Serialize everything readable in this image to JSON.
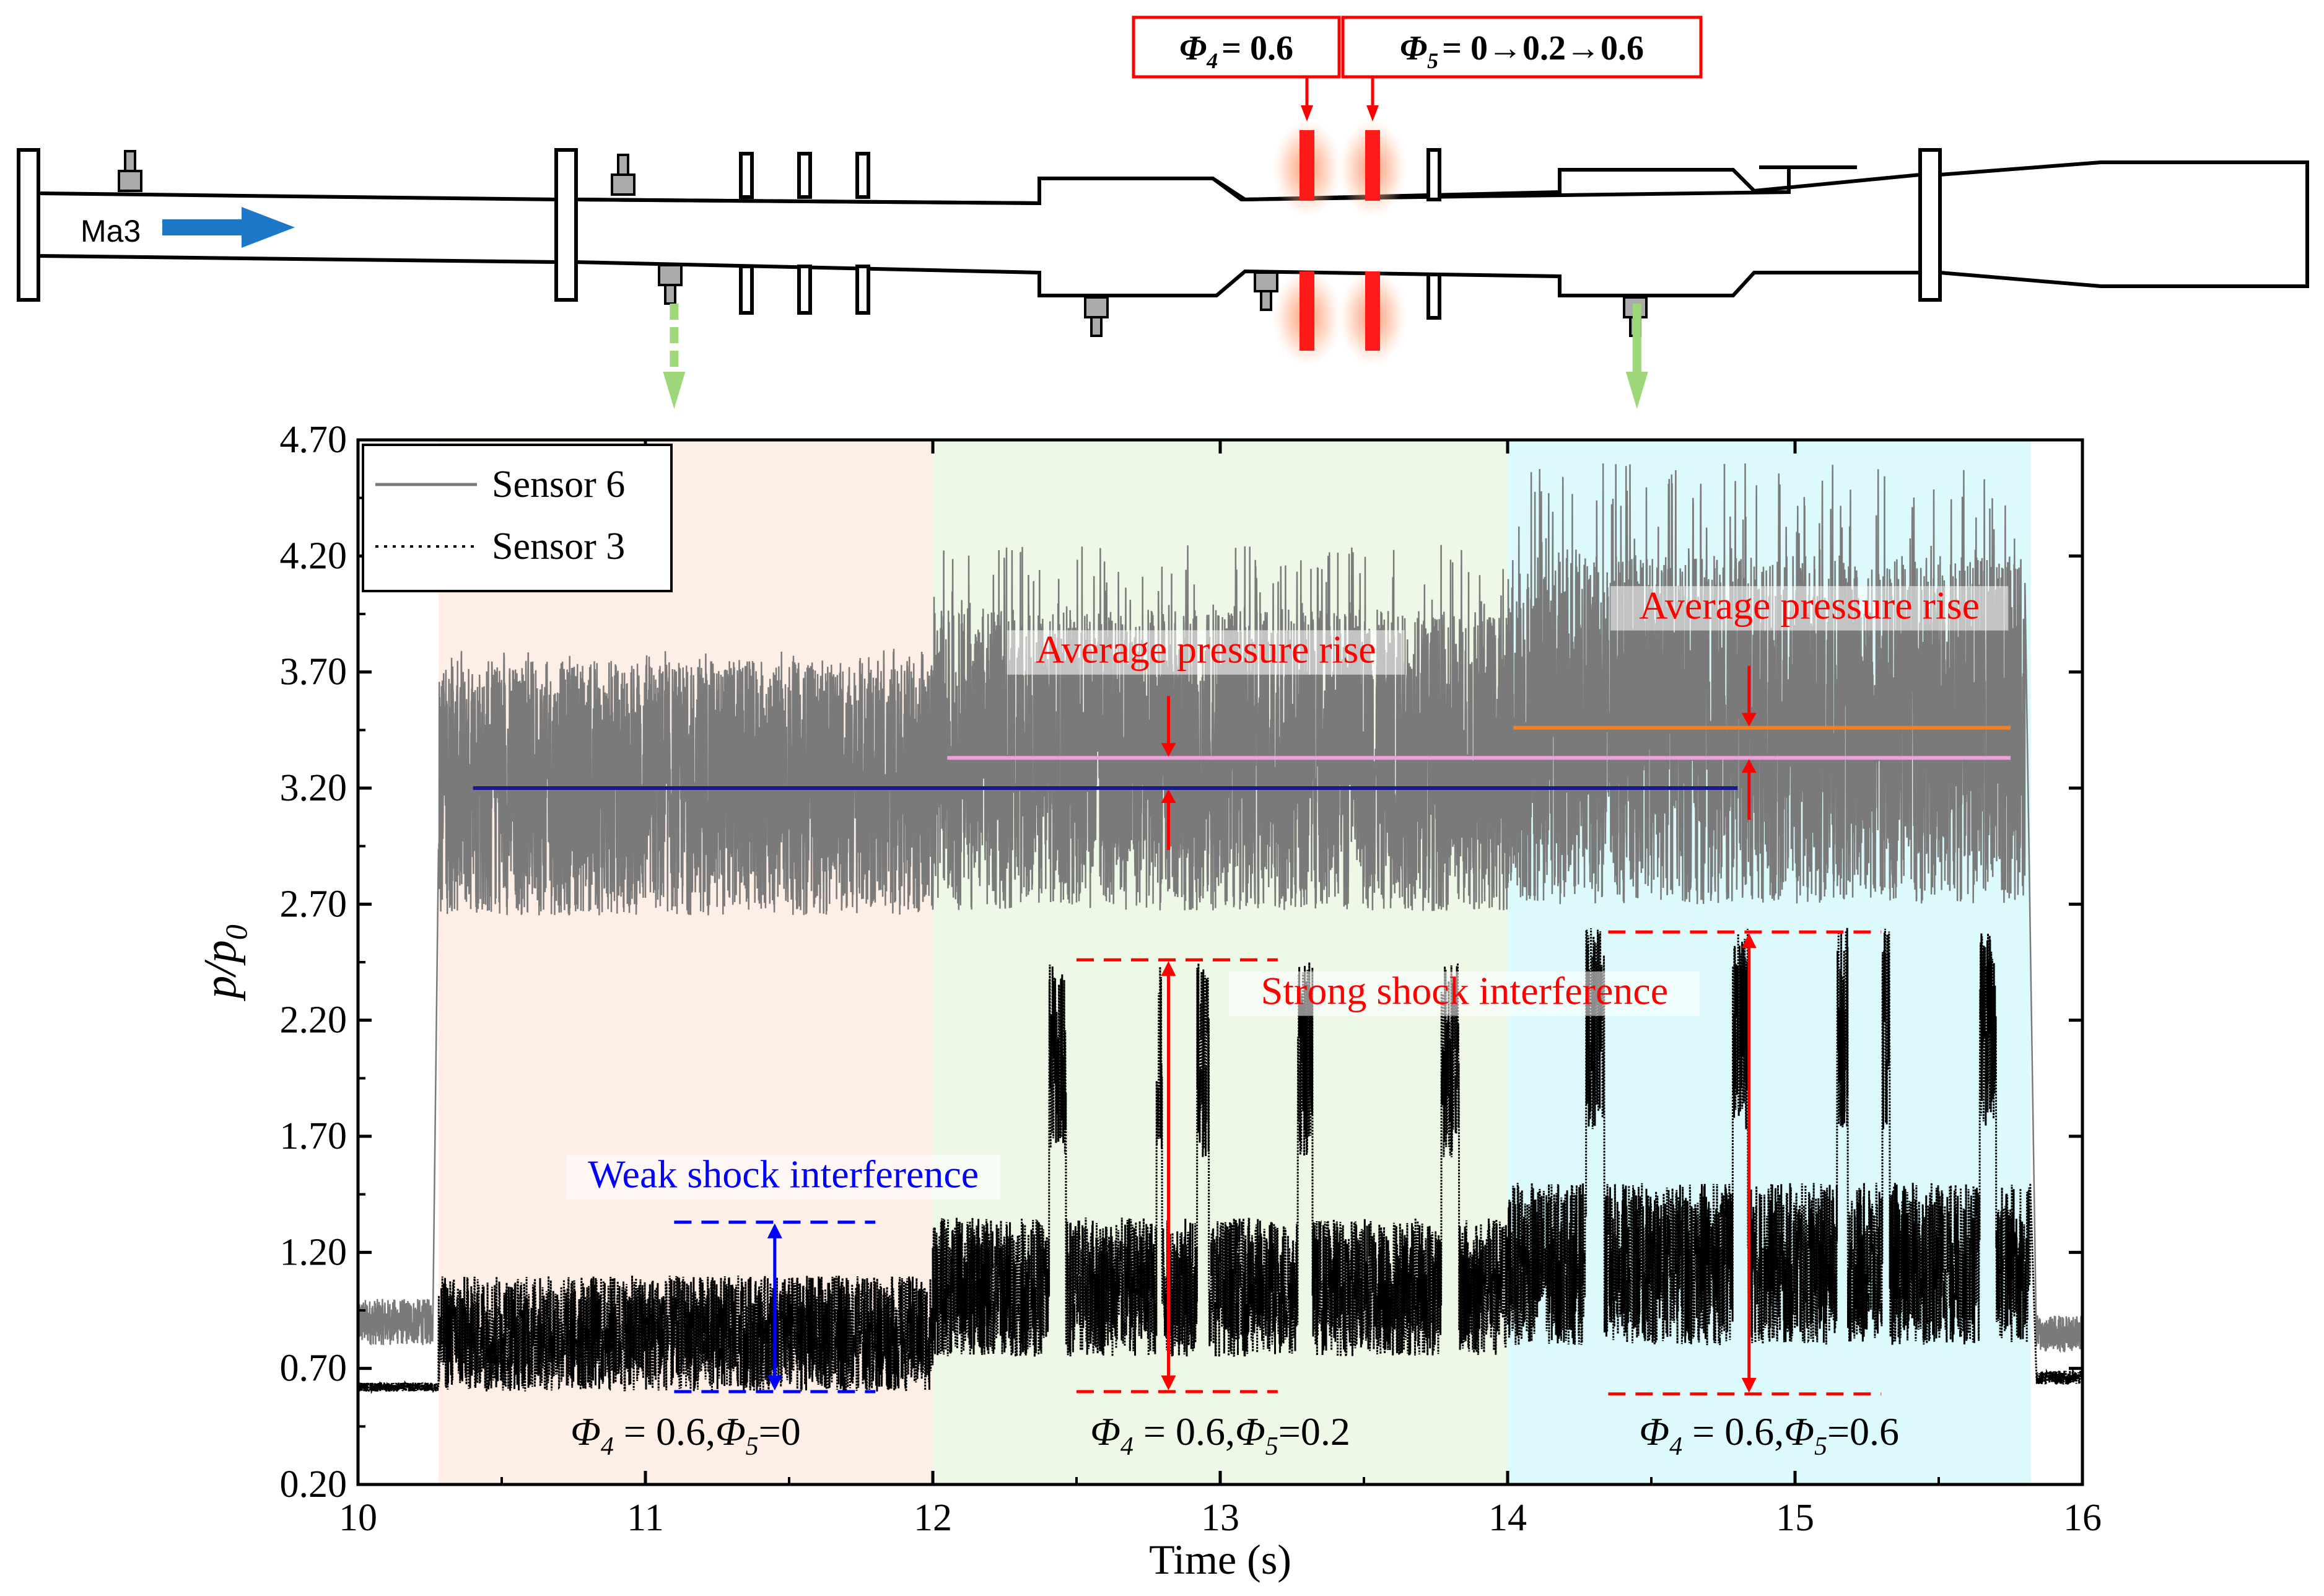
{
  "figure": {
    "inlet_label": "Ma3",
    "phi4_box": {
      "sym": "Φ",
      "sub": "4",
      "text": "= 0.6"
    },
    "phi5_box": {
      "sym": "Φ",
      "sub": "5",
      "text": "= 0→0.2→0.6"
    }
  },
  "chart_data": {
    "type": "line",
    "xlabel": "Time (s)",
    "ylabel": "p/p0",
    "ylabel_main": "p/p",
    "ylabel_sub": "0",
    "xlim": [
      10,
      16
    ],
    "ylim": [
      0.2,
      4.7
    ],
    "xticks": [
      "10",
      "11",
      "12",
      "13",
      "14",
      "15",
      "16"
    ],
    "yticks": [
      "0.20",
      "0.70",
      "1.20",
      "1.70",
      "2.20",
      "2.70",
      "3.20",
      "3.70",
      "4.20",
      "4.70"
    ],
    "legend": {
      "position": "top-left",
      "entries": [
        "Sensor 6",
        "Sensor 3"
      ]
    },
    "regions": [
      {
        "x0": 10.28,
        "x1": 12.0,
        "color": "#fdeee6",
        "label": "Φ4 = 0.6,Φ5=0",
        "phi5": "0"
      },
      {
        "x0": 12.0,
        "x1": 14.0,
        "color": "#eef8e6",
        "label": "Φ4 = 0.6,Φ5=0.2",
        "phi5": "0.2"
      },
      {
        "x0": 14.0,
        "x1": 15.82,
        "color": "#dcfafb",
        "label": "Φ4 = 0.6,Φ5=0.6",
        "phi5": "0.6"
      }
    ],
    "region_prefix": {
      "phi4_sym": "Φ",
      "phi4_sub": "4",
      "mid": " = 0.6,",
      "phi5_sym": "Φ",
      "phi5_sub": "5",
      "eq": "="
    },
    "series": [
      {
        "name": "Sensor 6",
        "style": "solid",
        "color": "#7a7a7a",
        "segments": [
          {
            "x0": 10.0,
            "x1": 10.26,
            "mean": 0.9,
            "amp": 0.1
          },
          {
            "x0": 10.28,
            "x1": 12.0,
            "mean": 3.2,
            "amp": 0.55,
            "peak_max": 3.8
          },
          {
            "x0": 12.0,
            "x1": 14.0,
            "mean": 3.32,
            "amp": 0.65,
            "peak_max": 4.25
          },
          {
            "x0": 14.0,
            "x1": 15.8,
            "mean": 3.45,
            "amp": 0.75,
            "peak_max": 4.6
          },
          {
            "x0": 15.84,
            "x1": 16.0,
            "mean": 0.85,
            "amp": 0.08
          }
        ]
      },
      {
        "name": "Sensor 3",
        "style": "dotted",
        "color": "#000000",
        "segments": [
          {
            "x0": 10.0,
            "x1": 10.28,
            "mean": 0.62,
            "amp": 0.02
          },
          {
            "x0": 10.28,
            "x1": 12.0,
            "mean": 0.85,
            "amp": 0.25
          },
          {
            "x0": 12.0,
            "x1": 14.0,
            "mean": 1.05,
            "amp": 0.3,
            "spike_max": 2.45
          },
          {
            "x0": 14.0,
            "x1": 15.82,
            "mean": 1.15,
            "amp": 0.35,
            "spike_max": 2.6
          },
          {
            "x0": 15.84,
            "x1": 16.0,
            "mean": 0.66,
            "amp": 0.03
          }
        ]
      }
    ],
    "mean_lines": [
      {
        "x0": 10.4,
        "x1": 14.8,
        "y": 3.2,
        "color": "#1a1a8c"
      },
      {
        "x0": 12.05,
        "x1": 15.75,
        "y": 3.33,
        "color": "#ef9fdc"
      },
      {
        "x0": 14.02,
        "x1": 15.75,
        "y": 3.46,
        "color": "#f07f2a"
      }
    ],
    "annotations": [
      {
        "text": "Average pressure rise",
        "x": 12.95,
        "y": 3.74,
        "color": "#ff0000"
      },
      {
        "text": "Average pressure rise",
        "x": 15.05,
        "y": 3.93,
        "color": "#ff0000"
      },
      {
        "text": "Strong shock interference",
        "x": 13.85,
        "y": 2.27,
        "color": "#ff0000"
      },
      {
        "text": "Weak shock interference",
        "x": 11.48,
        "y": 1.48,
        "color": "#0000ff"
      }
    ],
    "pressure_rise_arrows": [
      {
        "x": 12.82,
        "top": 3.33,
        "bottom": 3.2
      },
      {
        "x": 14.84,
        "top": 3.46,
        "bottom": 3.33
      }
    ],
    "shock_bands": [
      {
        "x": 11.45,
        "xl": 11.1,
        "xr": 11.8,
        "high": 1.33,
        "low": 0.6,
        "color": "#0000ff"
      },
      {
        "x": 12.82,
        "xl": 12.5,
        "xr": 13.2,
        "high": 2.46,
        "low": 0.6,
        "color": "#ff0000"
      },
      {
        "x": 14.84,
        "xl": 14.35,
        "xr": 15.3,
        "high": 2.58,
        "low": 0.59,
        "color": "#ff0000"
      }
    ],
    "sensor_pointers": [
      {
        "x": 11.1,
        "style": "dashed"
      },
      {
        "x": 14.45,
        "style": "solid"
      }
    ]
  }
}
